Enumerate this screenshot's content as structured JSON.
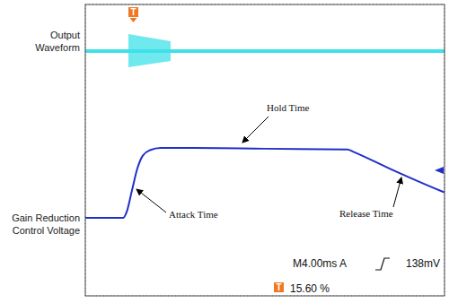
{
  "chart_data": {
    "type": "line",
    "xlim": [
      0,
      10
    ],
    "ylim": [
      0,
      8
    ],
    "xticks": [
      0,
      1,
      2,
      3,
      4,
      5,
      6,
      7,
      8,
      9,
      10
    ],
    "yticks": [
      0,
      1,
      2,
      3,
      4,
      5,
      6,
      7,
      8
    ],
    "grid": true,
    "tick_labels": false,
    "series": [
      {
        "name": "Output Waveform",
        "color": "#3fe0e8",
        "x": [
          0,
          10
        ],
        "values": [
          6.72,
          6.72
        ],
        "envelope": {
          "x": [
            1.2,
            2.375
          ],
          "lower": [
            6.28,
            6.45
          ],
          "upper": [
            7.19,
            6.99
          ]
        }
      },
      {
        "name": "Gain Reduction Control Voltage",
        "color": "#1f2fc8",
        "x": [
          0,
          1.05,
          1.15,
          1.3,
          1.45,
          1.6,
          1.8,
          2.1,
          3,
          5,
          7.3,
          7.45,
          8.5,
          9.9,
          10
        ],
        "values": [
          2.14,
          2.14,
          2.3,
          2.9,
          3.5,
          3.85,
          4.0,
          4.06,
          4.06,
          4.04,
          4.02,
          3.96,
          3.48,
          2.88,
          2.84
        ]
      }
    ],
    "annotations": [
      "Hold Time",
      "Attack Time",
      "Release Time"
    ],
    "status": [
      "M4.00ms A",
      "138mV",
      "15.60 %"
    ],
    "trigger_marker": "T"
  }
}
